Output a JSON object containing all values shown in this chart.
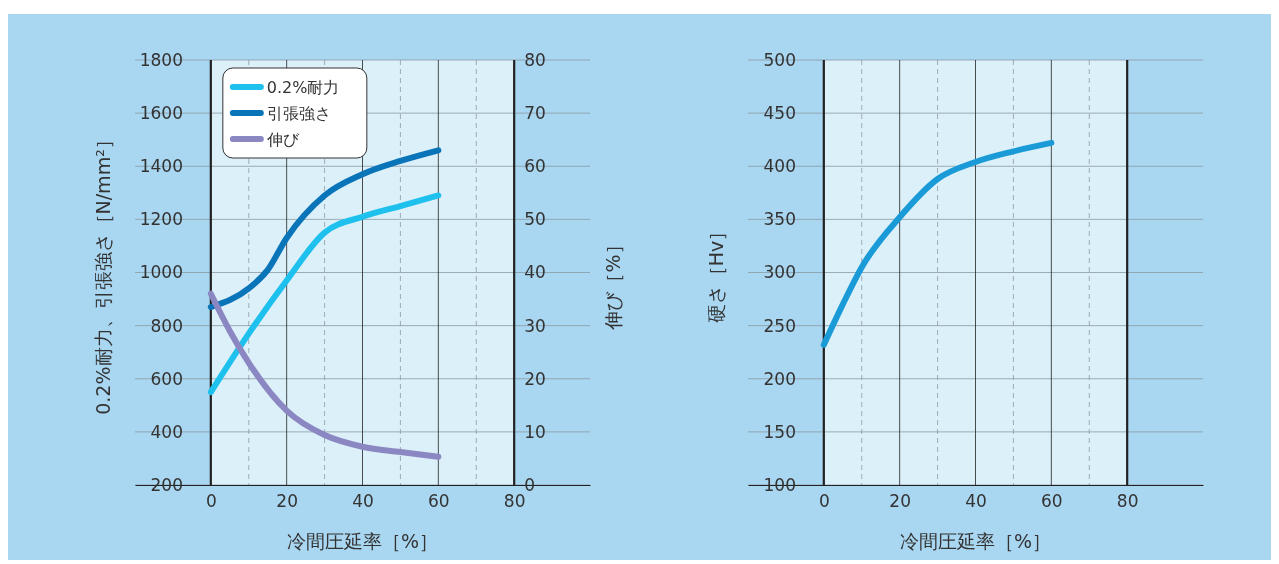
{
  "chart_data": [
    {
      "type": "line",
      "xlabel": "冷間圧延率［%］",
      "ylabel": "0.2%耐力、引張強さ［N/mm²］",
      "y2label": "伸び［%］",
      "xlim": [
        -20,
        100
      ],
      "xticks": [
        0,
        20,
        40,
        60,
        80
      ],
      "ylim": [
        200,
        1800
      ],
      "yticks": [
        200,
        400,
        600,
        800,
        1000,
        1200,
        1400,
        1600,
        1800
      ],
      "y2lim": [
        0,
        80
      ],
      "y2ticks": [
        0,
        10,
        20,
        30,
        40,
        50,
        60,
        70,
        80
      ],
      "grid": true,
      "legend": "top left",
      "bands": [
        {
          "axis": "x",
          "from": 0,
          "to": 80,
          "color": "#dcf0fa"
        }
      ],
      "line_style": "solid",
      "marker": "none",
      "series": [
        {
          "name": "0.2%耐力",
          "color": "#1ec0ee",
          "x": [
            0,
            10,
            20,
            30,
            40,
            50,
            60
          ],
          "values": [
            550,
            770,
            970,
            1150,
            1210,
            1250,
            1290
          ]
        },
        {
          "name": "引張強さ",
          "color": "#0a74b9",
          "x": [
            0,
            10,
            15,
            20,
            30,
            40,
            50,
            60
          ],
          "values": [
            870,
            940,
            1010,
            1130,
            1290,
            1370,
            1420,
            1460
          ]
        },
        {
          "name": "伸び",
          "color": "#8b87c2",
          "axis": "y2",
          "x": [
            0,
            5,
            10,
            20,
            30,
            40,
            50,
            60
          ],
          "values": [
            36,
            29,
            23,
            14,
            9.4,
            7.2,
            6.2,
            5.3
          ]
        }
      ]
    },
    {
      "type": "line",
      "xlabel": "冷間圧延率［%］",
      "ylabel": "硬さ［Hv］",
      "xlim": [
        -20,
        100
      ],
      "xticks": [
        0,
        20,
        40,
        60,
        80
      ],
      "ylim": [
        100,
        500
      ],
      "yticks": [
        100,
        150,
        200,
        250,
        300,
        350,
        400,
        450,
        500
      ],
      "grid": true,
      "bands": [
        {
          "axis": "x",
          "from": 0,
          "to": 80,
          "color": "#dcf0fa"
        }
      ],
      "line_style": "solid",
      "marker": "none",
      "series": [
        {
          "color": "#1a9bd7",
          "x": [
            0,
            5,
            10,
            20,
            30,
            40,
            50,
            60
          ],
          "values": [
            232,
            270,
            305,
            352,
            388,
            404,
            414,
            422
          ]
        }
      ]
    }
  ]
}
